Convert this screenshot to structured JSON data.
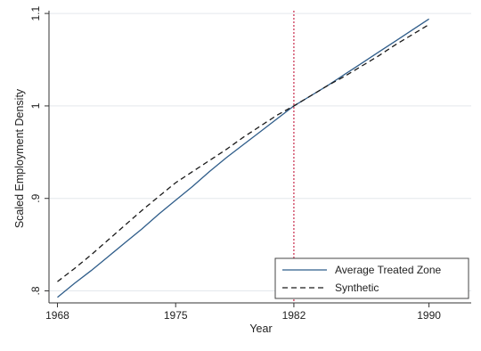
{
  "chart_data": {
    "type": "line",
    "title": "",
    "xlabel": "Year",
    "ylabel": "Scaled Employment Density",
    "xlim": [
      1967.5,
      1992.5
    ],
    "ylim": [
      0.787,
      1.103
    ],
    "x_ticks": [
      1968,
      1975,
      1982,
      1990
    ],
    "x_tick_labels": [
      "1968",
      "1975",
      "1982",
      "1990"
    ],
    "y_ticks": [
      0.8,
      0.9,
      1.0,
      1.1
    ],
    "y_tick_labels": [
      ".8",
      ".9",
      "1",
      "1.1"
    ],
    "grid": "horizontal",
    "legend_position": "bottom-right",
    "vline": {
      "x": 1982,
      "color": "#c8294a",
      "style": "dotted"
    },
    "series": [
      {
        "name": "Average Treated Zone",
        "color": "#2f5d8a",
        "style": "solid",
        "x": [
          1968,
          1969,
          1970,
          1971,
          1972,
          1973,
          1974,
          1975,
          1976,
          1977,
          1978,
          1979,
          1980,
          1981,
          1982,
          1983,
          1984,
          1985,
          1986,
          1987,
          1988,
          1989,
          1990
        ],
        "y": [
          0.793,
          0.808,
          0.822,
          0.837,
          0.852,
          0.867,
          0.883,
          0.898,
          0.913,
          0.929,
          0.944,
          0.958,
          0.972,
          0.986,
          1.0,
          1.011,
          1.022,
          1.034,
          1.046,
          1.058,
          1.07,
          1.082,
          1.094
        ]
      },
      {
        "name": "Synthetic",
        "color": "#1a1a1a",
        "style": "dashed",
        "x": [
          1968,
          1969,
          1970,
          1971,
          1972,
          1973,
          1974,
          1975,
          1976,
          1977,
          1978,
          1979,
          1980,
          1981,
          1982,
          1983,
          1984,
          1985,
          1986,
          1987,
          1988,
          1989,
          1990
        ],
        "y": [
          0.81,
          0.824,
          0.839,
          0.855,
          0.871,
          0.887,
          0.902,
          0.917,
          0.929,
          0.941,
          0.953,
          0.966,
          0.978,
          0.99,
          1.0,
          1.011,
          1.022,
          1.032,
          1.043,
          1.054,
          1.066,
          1.077,
          1.088
        ]
      }
    ]
  }
}
